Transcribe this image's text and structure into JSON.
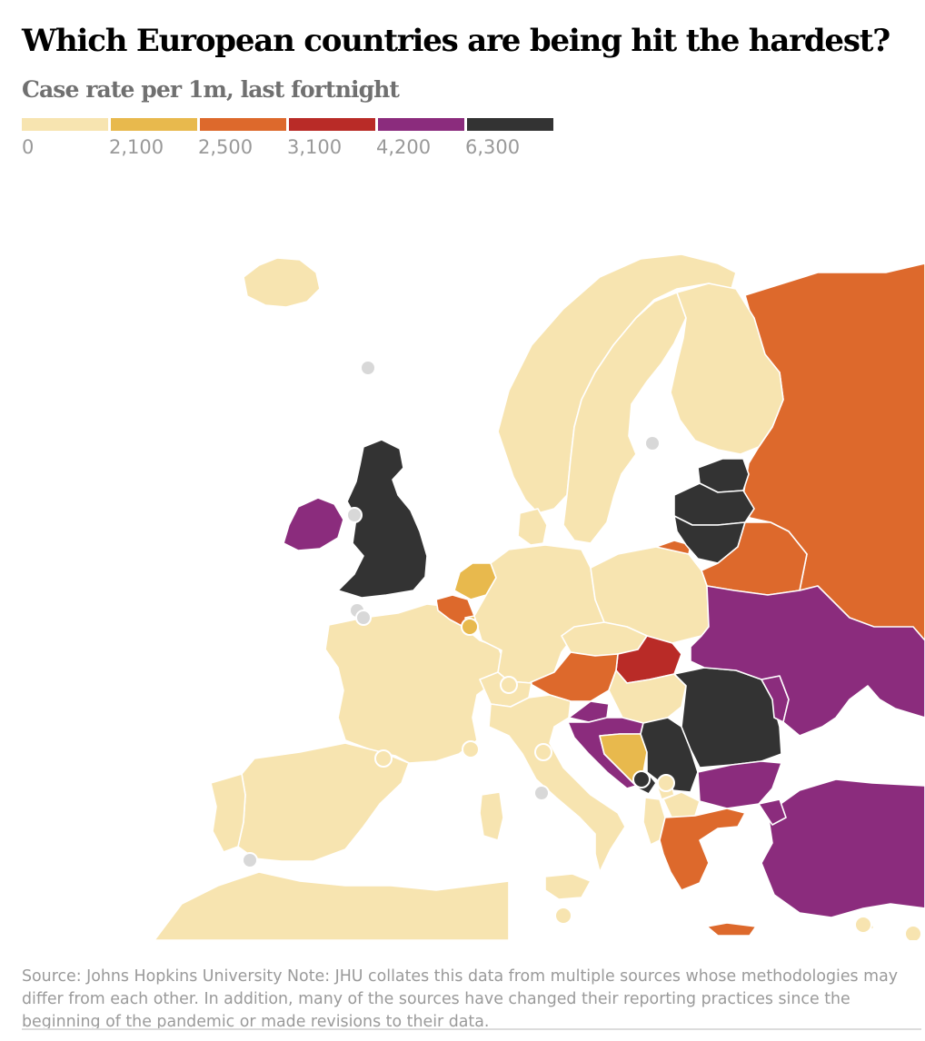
{
  "title": "Which European countries are being hit the hardest?",
  "subtitle": "Case rate per 1m, last fortnight",
  "legend": {
    "bins": [
      {
        "label": "0",
        "color": "#f7e4b0"
      },
      {
        "label": "2,100",
        "color": "#e8b94d"
      },
      {
        "label": "2,500",
        "color": "#dd692c"
      },
      {
        "label": "3,100",
        "color": "#b92b27"
      },
      {
        "label": "4,200",
        "color": "#8b2c7d"
      },
      {
        "label": "6,300",
        "color": "#333333"
      }
    ]
  },
  "colors": {
    "background": "#ffffff",
    "sea": "#ffffff",
    "border": "#ffffff",
    "no_data": "#d8d8d8"
  },
  "countries": {
    "iceland": "0",
    "norway": "0",
    "sweden": "0",
    "finland": "0",
    "denmark": "0",
    "uk": "6,300",
    "ireland": "4,200",
    "netherlands": "2,100",
    "belgium": "2,500",
    "luxembourg": "2,100",
    "france": "0",
    "spain": "0",
    "portugal": "0",
    "germany": "0",
    "poland": "0",
    "czechia": "0",
    "austria": "2,500",
    "switzerland": "0",
    "italy": "0",
    "slovakia": "3,100",
    "hungary": "0",
    "slovenia": "4,200",
    "croatia": "4,200",
    "bosnia": "2,100",
    "serbia": "6,300",
    "montenegro": "6,300",
    "kosovo": "0",
    "albania": "0",
    "north_macedonia": "0",
    "greece": "2,500",
    "bulgaria": "4,200",
    "romania": "6,300",
    "moldova": "4,200",
    "ukraine": "4,200",
    "belarus": "2,500",
    "lithuania": "6,300",
    "latvia": "6,300",
    "estonia": "6,300",
    "russia": "2,500",
    "kaliningrad": "2,500",
    "turkey": "4,200",
    "north_africa": "0",
    "cyprus": "0",
    "malta": "0"
  },
  "source": "Source: Johns Hopkins University Note: JHU collates this data from multiple sources whose methodologies may differ from each other. In addition, many of the sources have changed their reporting practices since the beginning of the pandemic or made revisions to their data."
}
